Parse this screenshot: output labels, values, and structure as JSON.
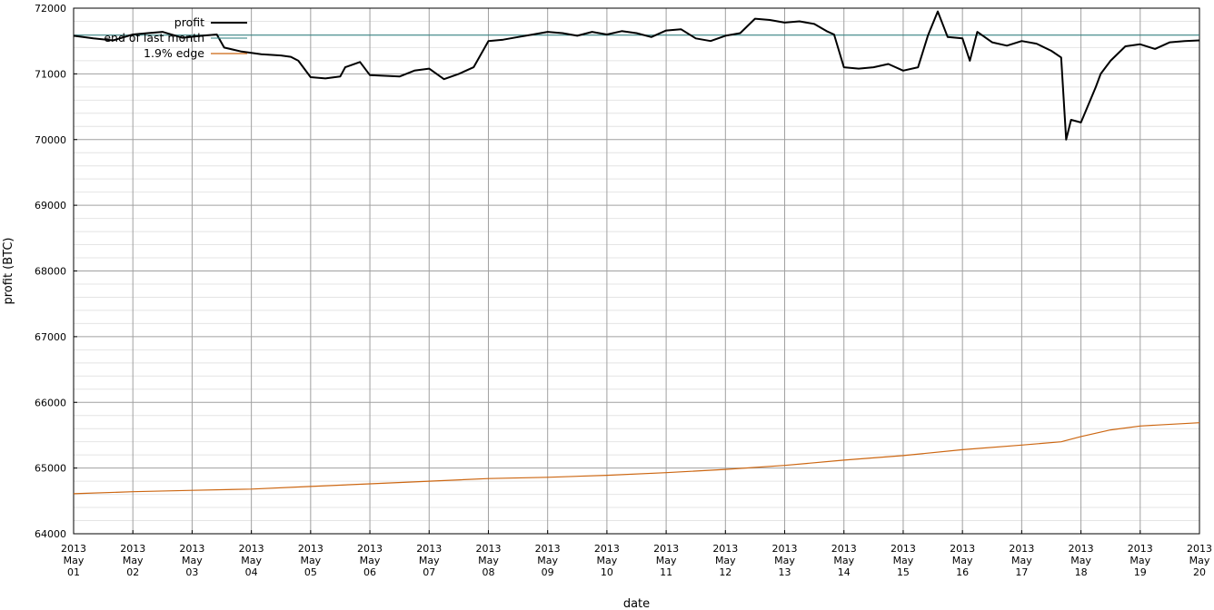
{
  "chart_data": {
    "type": "line",
    "xlabel": "date",
    "ylabel": "profit (BTC)",
    "x_range": [
      "2013-05-01",
      "2013-05-20"
    ],
    "ylim": [
      64000,
      72000
    ],
    "y_ticks": [
      64000,
      65000,
      66000,
      67000,
      68000,
      69000,
      70000,
      71000,
      72000
    ],
    "y_tick_labels": [
      "64000",
      "65000",
      "66000",
      "67000",
      "68000",
      "69000",
      "70000",
      "71000",
      "72000"
    ],
    "x_ticks": [
      {
        "date": "2013-05-01",
        "year": "2013",
        "month": "May",
        "day": "01"
      },
      {
        "date": "2013-05-02",
        "year": "2013",
        "month": "May",
        "day": "02"
      },
      {
        "date": "2013-05-03",
        "year": "2013",
        "month": "May",
        "day": "03"
      },
      {
        "date": "2013-05-04",
        "year": "2013",
        "month": "May",
        "day": "04"
      },
      {
        "date": "2013-05-05",
        "year": "2013",
        "month": "May",
        "day": "05"
      },
      {
        "date": "2013-05-06",
        "year": "2013",
        "month": "May",
        "day": "06"
      },
      {
        "date": "2013-05-07",
        "year": "2013",
        "month": "May",
        "day": "07"
      },
      {
        "date": "2013-05-08",
        "year": "2013",
        "month": "May",
        "day": "08"
      },
      {
        "date": "2013-05-09",
        "year": "2013",
        "month": "May",
        "day": "09"
      },
      {
        "date": "2013-05-10",
        "year": "2013",
        "month": "May",
        "day": "10"
      },
      {
        "date": "2013-05-11",
        "year": "2013",
        "month": "May",
        "day": "11"
      },
      {
        "date": "2013-05-12",
        "year": "2013",
        "month": "May",
        "day": "12"
      },
      {
        "date": "2013-05-13",
        "year": "2013",
        "month": "May",
        "day": "13"
      },
      {
        "date": "2013-05-14",
        "year": "2013",
        "month": "May",
        "day": "14"
      },
      {
        "date": "2013-05-15",
        "year": "2013",
        "month": "May",
        "day": "15"
      },
      {
        "date": "2013-05-16",
        "year": "2013",
        "month": "May",
        "day": "16"
      },
      {
        "date": "2013-05-17",
        "year": "2013",
        "month": "May",
        "day": "17"
      },
      {
        "date": "2013-05-18",
        "year": "2013",
        "month": "May",
        "day": "18"
      },
      {
        "date": "2013-05-19",
        "year": "2013",
        "month": "May",
        "day": "19"
      },
      {
        "date": "2013-05-20",
        "year": "2013",
        "month": "May",
        "day": "20"
      }
    ],
    "grid": true,
    "minor_grid": true,
    "legend_position": "top-left",
    "series": [
      {
        "name": "profit",
        "color": "#000000",
        "x": [
          "2013-05-01 00:00",
          "2013-05-01 08:00",
          "2013-05-01 16:00",
          "2013-05-02 00:00",
          "2013-05-02 06:00",
          "2013-05-02 12:00",
          "2013-05-02 20:00",
          "2013-05-03 04:00",
          "2013-05-03 10:00",
          "2013-05-03 13:00",
          "2013-05-03 20:00",
          "2013-05-04 04:00",
          "2013-05-04 12:00",
          "2013-05-04 16:00",
          "2013-05-04 19:00",
          "2013-05-05 00:00",
          "2013-05-05 06:00",
          "2013-05-05 12:00",
          "2013-05-05 14:00",
          "2013-05-05 20:00",
          "2013-05-06 00:00",
          "2013-05-06 12:00",
          "2013-05-06 18:00",
          "2013-05-07 00:00",
          "2013-05-07 06:00",
          "2013-05-07 12:00",
          "2013-05-07 18:00",
          "2013-05-08 00:00",
          "2013-05-08 06:00",
          "2013-05-08 12:00",
          "2013-05-08 18:00",
          "2013-05-09 00:00",
          "2013-05-09 06:00",
          "2013-05-09 12:00",
          "2013-05-09 18:00",
          "2013-05-10 00:00",
          "2013-05-10 06:00",
          "2013-05-10 12:00",
          "2013-05-10 18:00",
          "2013-05-11 00:00",
          "2013-05-11 06:00",
          "2013-05-11 12:00",
          "2013-05-11 18:00",
          "2013-05-12 00:00",
          "2013-05-12 06:00",
          "2013-05-12 12:00",
          "2013-05-12 18:00",
          "2013-05-13 00:00",
          "2013-05-13 06:00",
          "2013-05-13 12:00",
          "2013-05-13 17:00",
          "2013-05-13 20:00",
          "2013-05-14 00:00",
          "2013-05-14 06:00",
          "2013-05-14 12:00",
          "2013-05-14 18:00",
          "2013-05-15 00:00",
          "2013-05-15 06:00",
          "2013-05-15 10:00",
          "2013-05-15 14:00",
          "2013-05-15 18:00",
          "2013-05-16 00:00",
          "2013-05-16 03:00",
          "2013-05-16 06:00",
          "2013-05-16 12:00",
          "2013-05-16 18:00",
          "2013-05-17 00:00",
          "2013-05-17 06:00",
          "2013-05-17 12:00",
          "2013-05-17 16:00",
          "2013-05-17 18:00",
          "2013-05-17 20:00",
          "2013-05-18 00:00",
          "2013-05-18 06:00",
          "2013-05-18 08:00",
          "2013-05-18 12:00",
          "2013-05-18 18:00",
          "2013-05-19 00:00",
          "2013-05-19 06:00",
          "2013-05-19 12:00",
          "2013-05-19 18:00",
          "2013-05-20 00:00"
        ],
        "y": [
          71580,
          71540,
          71510,
          71600,
          71620,
          71640,
          71550,
          71580,
          71600,
          71400,
          71340,
          71300,
          71280,
          71260,
          71200,
          70950,
          70930,
          70960,
          71100,
          71180,
          70980,
          70960,
          71050,
          71080,
          70920,
          71000,
          71100,
          71500,
          71520,
          71560,
          71600,
          71640,
          71620,
          71580,
          71640,
          71600,
          71650,
          71620,
          71560,
          71660,
          71680,
          71540,
          71500,
          71580,
          71620,
          71840,
          71820,
          71780,
          71800,
          71760,
          71650,
          71600,
          71100,
          71080,
          71100,
          71150,
          71050,
          71100,
          71580,
          71950,
          71560,
          71540,
          71200,
          71640,
          71480,
          71430,
          71500,
          71460,
          71350,
          71250,
          70000,
          70300,
          70260,
          70800,
          71000,
          71200,
          71420,
          71450,
          71380,
          71480,
          71500,
          71510
        ]
      },
      {
        "name": "end of last month",
        "color": "#2a7f7f",
        "x": [
          "2013-05-01 00:00",
          "2013-05-20 00:00"
        ],
        "y": [
          71590,
          71590
        ]
      },
      {
        "name": "1.9% edge",
        "color": "#cc6611",
        "x": [
          "2013-05-01 00:00",
          "2013-05-02 00:00",
          "2013-05-03 00:00",
          "2013-05-04 00:00",
          "2013-05-05 00:00",
          "2013-05-06 00:00",
          "2013-05-07 00:00",
          "2013-05-08 00:00",
          "2013-05-09 00:00",
          "2013-05-10 00:00",
          "2013-05-11 00:00",
          "2013-05-12 00:00",
          "2013-05-13 00:00",
          "2013-05-14 00:00",
          "2013-05-15 00:00",
          "2013-05-16 00:00",
          "2013-05-17 00:00",
          "2013-05-17 16:00",
          "2013-05-18 00:00",
          "2013-05-18 12:00",
          "2013-05-19 00:00",
          "2013-05-20 00:00"
        ],
        "y": [
          64610,
          64640,
          64660,
          64680,
          64720,
          64760,
          64800,
          64840,
          64860,
          64890,
          64930,
          64980,
          65040,
          65120,
          65190,
          65280,
          65350,
          65400,
          65480,
          65580,
          65640,
          65690
        ]
      }
    ]
  }
}
